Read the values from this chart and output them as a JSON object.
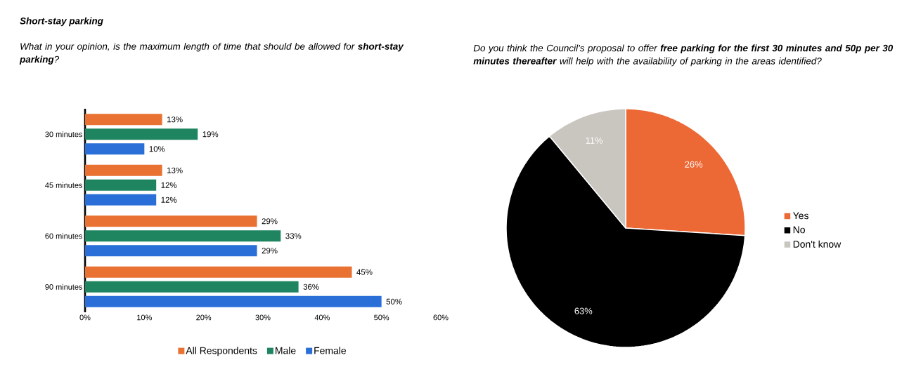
{
  "chart_data": [
    {
      "type": "bar",
      "orientation": "horizontal",
      "title": "Short-stay parking",
      "subtitle": "What in your opinion, is the maximum length of time that should be allowed for **short-stay parking**?",
      "categories": [
        "30 minutes",
        "45 minutes",
        "60 minutes",
        "90 minutes"
      ],
      "series": [
        {
          "name": "All Respondents",
          "color": "#e97132",
          "values": [
            13,
            13,
            29,
            45
          ],
          "value_labels": [
            "13%",
            "13%",
            "29%",
            "45%"
          ]
        },
        {
          "name": "Male",
          "color": "#1e8560",
          "values": [
            19,
            12,
            33,
            36
          ],
          "value_labels": [
            "19%",
            "12%",
            "33%",
            "36%"
          ]
        },
        {
          "name": "Female",
          "color": "#2a6fd8",
          "values": [
            10,
            12,
            29,
            50
          ],
          "value_labels": [
            "10%",
            "12%",
            "29%",
            "50%"
          ]
        }
      ],
      "xlim": [
        0,
        60
      ],
      "xticks": [
        {
          "value": 0,
          "label": "0%"
        },
        {
          "value": 10,
          "label": "10%"
        },
        {
          "value": 20,
          "label": "20%"
        },
        {
          "value": 30,
          "label": "30%"
        },
        {
          "value": 40,
          "label": "40%"
        },
        {
          "value": 50,
          "label": "50%"
        },
        {
          "value": 60,
          "label": "60%"
        }
      ],
      "legend": "bottom"
    },
    {
      "type": "pie",
      "title": "Do you think the Council’s proposal to offer **free parking for the first 30 minutes and 50p per 30 minutes thereafter** will help with the availability of parking in the areas identified?",
      "categories": [
        "Yes",
        "No",
        "Don't know"
      ],
      "values": [
        26,
        63,
        11
      ],
      "value_labels": [
        "26%",
        "63%",
        "11%"
      ],
      "colors": [
        "#ec6834",
        "#000000",
        "#c9c5bf"
      ],
      "legend": "right"
    }
  ]
}
